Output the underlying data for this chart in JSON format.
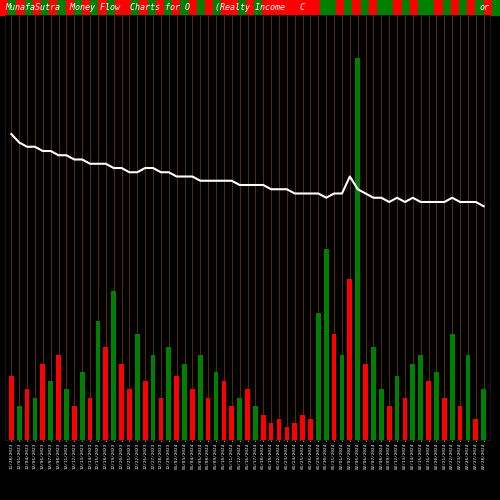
{
  "title_left": "MunafaSutra  Money Flow  Charts for O",
  "title_mid": "(Realty Income   C",
  "title_right": "or",
  "bg_color": "#000000",
  "bar_colors": [
    "red",
    "green",
    "red",
    "green",
    "red",
    "green",
    "red",
    "green",
    "red",
    "green",
    "red",
    "green",
    "red",
    "green",
    "red",
    "red",
    "green",
    "red",
    "green",
    "red",
    "green",
    "red",
    "green",
    "red",
    "green",
    "red",
    "green",
    "red",
    "red",
    "green",
    "red",
    "green",
    "red",
    "red",
    "red",
    "red",
    "red",
    "red",
    "red",
    "green",
    "green",
    "red",
    "green",
    "red",
    "green",
    "red",
    "green",
    "green",
    "red",
    "green",
    "red",
    "green",
    "green",
    "red",
    "green",
    "red",
    "green",
    "red",
    "green",
    "red",
    "green"
  ],
  "bar_heights": [
    15,
    8,
    12,
    10,
    18,
    14,
    20,
    12,
    8,
    16,
    10,
    28,
    22,
    35,
    18,
    12,
    25,
    14,
    20,
    10,
    22,
    15,
    18,
    12,
    20,
    10,
    16,
    14,
    8,
    10,
    12,
    8,
    6,
    4,
    5,
    3,
    4,
    6,
    5,
    30,
    45,
    25,
    20,
    38,
    90,
    18,
    22,
    12,
    8,
    15,
    10,
    18,
    20,
    14,
    16,
    10,
    25,
    8,
    20,
    5,
    12
  ],
  "line_values": [
    72,
    70,
    69,
    69,
    68,
    68,
    67,
    67,
    66,
    66,
    65,
    65,
    65,
    64,
    64,
    63,
    63,
    64,
    64,
    63,
    63,
    62,
    62,
    62,
    61,
    61,
    61,
    61,
    61,
    60,
    60,
    60,
    60,
    59,
    59,
    59,
    58,
    58,
    58,
    58,
    57,
    58,
    58,
    62,
    59,
    58,
    57,
    57,
    56,
    57,
    56,
    57,
    56,
    56,
    56,
    56,
    57,
    56,
    56,
    56,
    55
  ],
  "dates": [
    "11/28/2023",
    "12/01/2023",
    "12/04/2023",
    "12/05/2023",
    "12/06/2023",
    "12/07/2023",
    "12/08/2023",
    "12/11/2023",
    "12/12/2023",
    "12/13/2023",
    "12/14/2023",
    "12/15/2023",
    "12/18/2023",
    "12/19/2023",
    "12/20/2023",
    "12/21/2023",
    "12/22/2023",
    "12/26/2023",
    "12/27/2023",
    "12/28/2023",
    "12/29/2023",
    "01/02/2024",
    "01/03/2024",
    "01/04/2024",
    "01/05/2024",
    "01/08/2024",
    "01/09/2024",
    "01/10/2024",
    "01/11/2024",
    "01/12/2024",
    "01/16/2024",
    "01/17/2024",
    "01/18/2024",
    "01/19/2024",
    "01/22/2024",
    "01/23/2024",
    "01/24/2024",
    "01/25/2024",
    "01/26/2024",
    "01/29/2024",
    "01/30/2024",
    "01/31/2024",
    "02/01/2024",
    "02/02/2024",
    "02/05/2024",
    "02/06/2024",
    "02/07/2024",
    "02/08/2024",
    "02/09/2024",
    "02/12/2024",
    "02/13/2024",
    "02/14/2024",
    "02/15/2024",
    "02/16/2024",
    "02/20/2024",
    "02/21/2024",
    "02/22/2024",
    "02/23/2024",
    "02/26/2024",
    "02/27/2024",
    "02/28/2024"
  ],
  "grid_color": "#8B4500",
  "line_color": "#FFFFFF",
  "title_color": "#FFFFFF",
  "title_fontsize": 6,
  "bar_ylim": [
    0,
    100
  ],
  "line_ylim": [
    0,
    100
  ],
  "top_strip_colors": [
    "red",
    "green",
    "red",
    "green",
    "red",
    "green",
    "red",
    "green",
    "red",
    "green",
    "red",
    "green",
    "red",
    "green",
    "red",
    "red",
    "green",
    "red",
    "green",
    "red",
    "green",
    "red",
    "green",
    "red",
    "green",
    "red",
    "green",
    "red",
    "red",
    "green",
    "red",
    "green",
    "red",
    "red",
    "red",
    "red",
    "red",
    "red",
    "red",
    "green",
    "green",
    "red",
    "green",
    "red",
    "green",
    "red",
    "green",
    "green",
    "red",
    "green",
    "red",
    "green",
    "green",
    "red",
    "green",
    "red",
    "green",
    "red",
    "green",
    "red",
    "green"
  ]
}
